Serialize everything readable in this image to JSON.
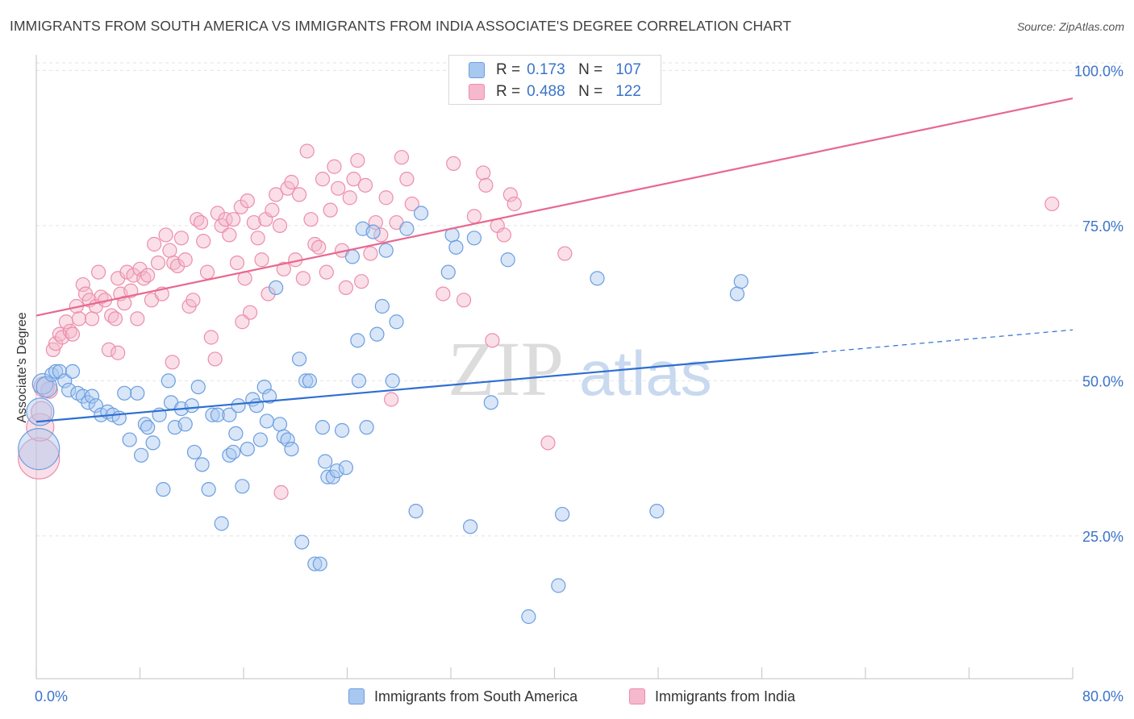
{
  "header": {
    "title": "IMMIGRANTS FROM SOUTH AMERICA VS IMMIGRANTS FROM INDIA ASSOCIATE'S DEGREE CORRELATION CHART",
    "source": "Source: ZipAtlas.com"
  },
  "legend": {
    "r_label": "R =",
    "n_label": "N =",
    "south_america": {
      "r": "0.173",
      "n": "107"
    },
    "india": {
      "r": "0.488",
      "n": "122"
    }
  },
  "bottom_legend": {
    "south_america": "Immigrants from South America",
    "india": "Immigrants from India"
  },
  "watermark": {
    "zip": "ZIP",
    "atlas": "atlas"
  },
  "colors": {
    "blue_fill": "#a8c8f0",
    "blue_stroke": "#6b9ee0",
    "blue_line": "#2e6fd1",
    "pink_fill": "#f5b8cc",
    "pink_stroke": "#ec8eab",
    "pink_line": "#e8688f",
    "tick_text": "#3b74c9",
    "grid": "#e3e3e3"
  },
  "chart_data": {
    "type": "scatter",
    "title": "IMMIGRANTS FROM SOUTH AMERICA VS IMMIGRANTS FROM INDIA ASSOCIATE'S DEGREE CORRELATION CHART",
    "xlabel": "",
    "ylabel": "Associate's Degree",
    "xlim": [
      0,
      80
    ],
    "ylim": [
      2,
      102
    ],
    "x_tick_labels": [
      "0.0%",
      "80.0%"
    ],
    "y_ticks": [
      25,
      50,
      75,
      100
    ],
    "y_tick_labels": [
      "25.0%",
      "50.0%",
      "75.0%",
      "100.0%"
    ],
    "series": [
      {
        "name": "Immigrants from South America",
        "color": "blue",
        "trend": {
          "x0": 0,
          "y0": 43.4,
          "x1": 60,
          "y1": 54.5,
          "dash_to_x": 80,
          "dash_to_y": 58.2
        },
        "points": [
          [
            0.2,
            39,
            3
          ],
          [
            0.3,
            45,
            2
          ],
          [
            0.5,
            49.5,
            1.5
          ],
          [
            0.8,
            49,
            1.5
          ],
          [
            1.2,
            51,
            1
          ],
          [
            1.5,
            51.5,
            1
          ],
          [
            1.8,
            51.5,
            1
          ],
          [
            2.2,
            50,
            1
          ],
          [
            2.5,
            48.5,
            1
          ],
          [
            2.8,
            51.5,
            1
          ],
          [
            3.2,
            48,
            1
          ],
          [
            3.6,
            47.5,
            1
          ],
          [
            4.0,
            46.5,
            1
          ],
          [
            4.3,
            47.5,
            1
          ],
          [
            4.6,
            46,
            1
          ],
          [
            5.0,
            44.5,
            1
          ],
          [
            5.5,
            45,
            1
          ],
          [
            5.9,
            44.5,
            1
          ],
          [
            6.4,
            44,
            1
          ],
          [
            6.8,
            48,
            1
          ],
          [
            7.2,
            40.5,
            1
          ],
          [
            7.8,
            48,
            1
          ],
          [
            8.1,
            38,
            1
          ],
          [
            8.4,
            43,
            1
          ],
          [
            8.6,
            42.5,
            1
          ],
          [
            9.0,
            40,
            1
          ],
          [
            9.5,
            44.5,
            1
          ],
          [
            9.8,
            32.5,
            1
          ],
          [
            10.2,
            50,
            1
          ],
          [
            10.4,
            46.5,
            1
          ],
          [
            10.7,
            42.5,
            1
          ],
          [
            11.2,
            45.5,
            1
          ],
          [
            11.5,
            43,
            1
          ],
          [
            12.0,
            46,
            1
          ],
          [
            12.2,
            38.5,
            1
          ],
          [
            12.5,
            49,
            1
          ],
          [
            12.8,
            36.5,
            1
          ],
          [
            13.3,
            32.5,
            1
          ],
          [
            13.6,
            44.5,
            1
          ],
          [
            14.0,
            44.5,
            1
          ],
          [
            14.3,
            27,
            1
          ],
          [
            14.9,
            44.5,
            1
          ],
          [
            14.9,
            38,
            1
          ],
          [
            15.2,
            38.5,
            1
          ],
          [
            15.4,
            41.5,
            1
          ],
          [
            15.6,
            46,
            1
          ],
          [
            15.9,
            33,
            1
          ],
          [
            16.3,
            39,
            1
          ],
          [
            16.7,
            47,
            1
          ],
          [
            17.0,
            46,
            1
          ],
          [
            17.3,
            40.5,
            1
          ],
          [
            17.6,
            49,
            1
          ],
          [
            17.8,
            43.5,
            1
          ],
          [
            18.0,
            47.5,
            1
          ],
          [
            18.5,
            65,
            1
          ],
          [
            18.8,
            43,
            1
          ],
          [
            19.1,
            41,
            1
          ],
          [
            19.4,
            40.5,
            1
          ],
          [
            19.7,
            39,
            1
          ],
          [
            20.3,
            53.5,
            1
          ],
          [
            20.5,
            24,
            1
          ],
          [
            20.8,
            50,
            1
          ],
          [
            21.1,
            50,
            1
          ],
          [
            21.5,
            20.5,
            1
          ],
          [
            21.9,
            20.5,
            1
          ],
          [
            22.1,
            42.5,
            1
          ],
          [
            22.3,
            37,
            1
          ],
          [
            22.5,
            34.5,
            1
          ],
          [
            22.9,
            34.5,
            1
          ],
          [
            23.2,
            35.5,
            1
          ],
          [
            23.6,
            42,
            1
          ],
          [
            23.9,
            36,
            1
          ],
          [
            24.4,
            70,
            1
          ],
          [
            24.8,
            56.5,
            1
          ],
          [
            24.9,
            50,
            1
          ],
          [
            25.2,
            74.5,
            1
          ],
          [
            25.5,
            42.5,
            1
          ],
          [
            26.0,
            74,
            1
          ],
          [
            26.3,
            57.5,
            1
          ],
          [
            26.7,
            62,
            1
          ],
          [
            27.0,
            71,
            1
          ],
          [
            27.5,
            50,
            1
          ],
          [
            27.8,
            59.5,
            1
          ],
          [
            28.6,
            74.5,
            1
          ],
          [
            29.3,
            29,
            1
          ],
          [
            29.7,
            77,
            1
          ],
          [
            31.8,
            67.5,
            1
          ],
          [
            32.1,
            73.5,
            1
          ],
          [
            32.4,
            71.5,
            1
          ],
          [
            33.5,
            26.5,
            1
          ],
          [
            33.8,
            73,
            1
          ],
          [
            35.1,
            46.5,
            1
          ],
          [
            36.4,
            69.5,
            1
          ],
          [
            38.0,
            12,
            1
          ],
          [
            40.3,
            17,
            1
          ],
          [
            40.6,
            28.5,
            1
          ],
          [
            43.3,
            66.5,
            1
          ],
          [
            47.9,
            29,
            1
          ],
          [
            54.1,
            64,
            1
          ],
          [
            54.4,
            66,
            1
          ]
        ]
      },
      {
        "name": "Immigrants from India",
        "color": "pink",
        "trend": {
          "x0": 0,
          "y0": 60.5,
          "x1": 80,
          "y1": 95.5
        },
        "points": [
          [
            0.2,
            37.5,
            3
          ],
          [
            0.3,
            42.5,
            2
          ],
          [
            0.4,
            45,
            1.5
          ],
          [
            0.6,
            49,
            1.5
          ],
          [
            1.0,
            48.5,
            1.2
          ],
          [
            1.3,
            55,
            1
          ],
          [
            1.5,
            56,
            1
          ],
          [
            1.8,
            57.5,
            1
          ],
          [
            2.0,
            57,
            1
          ],
          [
            2.3,
            59.5,
            1
          ],
          [
            2.6,
            58,
            1
          ],
          [
            2.8,
            57.5,
            1
          ],
          [
            3.1,
            62,
            1
          ],
          [
            3.3,
            60,
            1
          ],
          [
            3.6,
            65.5,
            1
          ],
          [
            3.8,
            64,
            1
          ],
          [
            4.1,
            63,
            1
          ],
          [
            4.3,
            60,
            1
          ],
          [
            4.6,
            62,
            1
          ],
          [
            4.8,
            67.5,
            1
          ],
          [
            5.0,
            63.5,
            1
          ],
          [
            5.3,
            63,
            1
          ],
          [
            5.6,
            55,
            1
          ],
          [
            5.8,
            60.5,
            1
          ],
          [
            6.1,
            60,
            1
          ],
          [
            6.3,
            66.5,
            1
          ],
          [
            6.5,
            64,
            1
          ],
          [
            6.8,
            62.5,
            1
          ],
          [
            7.0,
            67.5,
            1
          ],
          [
            7.3,
            64.5,
            1
          ],
          [
            7.5,
            67,
            1
          ],
          [
            7.8,
            60,
            1
          ],
          [
            8.0,
            68,
            1
          ],
          [
            8.3,
            66.5,
            1
          ],
          [
            8.6,
            67,
            1
          ],
          [
            8.9,
            63,
            1
          ],
          [
            9.1,
            72,
            1
          ],
          [
            9.4,
            69,
            1
          ],
          [
            9.7,
            64,
            1
          ],
          [
            10.0,
            73.5,
            1
          ],
          [
            10.3,
            71,
            1
          ],
          [
            10.6,
            69,
            1
          ],
          [
            10.9,
            68.5,
            1
          ],
          [
            11.2,
            73,
            1
          ],
          [
            11.5,
            69.5,
            1
          ],
          [
            11.8,
            62,
            1
          ],
          [
            12.1,
            63,
            1
          ],
          [
            12.4,
            76,
            1
          ],
          [
            12.7,
            75.5,
            1
          ],
          [
            12.9,
            72.5,
            1
          ],
          [
            13.2,
            67.5,
            1
          ],
          [
            13.5,
            57,
            1
          ],
          [
            13.8,
            53.5,
            1
          ],
          [
            14.0,
            77,
            1
          ],
          [
            14.3,
            75,
            1
          ],
          [
            14.6,
            76,
            1
          ],
          [
            14.9,
            73.5,
            1
          ],
          [
            15.2,
            76,
            1
          ],
          [
            15.5,
            69,
            1
          ],
          [
            15.8,
            78,
            1
          ],
          [
            16.1,
            66.5,
            1
          ],
          [
            16.3,
            79,
            1
          ],
          [
            16.5,
            61,
            1
          ],
          [
            16.8,
            75.5,
            1
          ],
          [
            17.1,
            73,
            1
          ],
          [
            17.4,
            69.5,
            1
          ],
          [
            17.7,
            76,
            1
          ],
          [
            17.9,
            64,
            1
          ],
          [
            18.2,
            77.5,
            1
          ],
          [
            18.5,
            80,
            1
          ],
          [
            18.8,
            75,
            1
          ],
          [
            19.1,
            68,
            1
          ],
          [
            19.4,
            81,
            1
          ],
          [
            19.7,
            82,
            1
          ],
          [
            20.0,
            69.5,
            1
          ],
          [
            20.3,
            80,
            1
          ],
          [
            20.6,
            66.5,
            1
          ],
          [
            20.9,
            87,
            1
          ],
          [
            21.2,
            76,
            1
          ],
          [
            21.5,
            72,
            1
          ],
          [
            21.8,
            71.5,
            1
          ],
          [
            22.1,
            82.5,
            1
          ],
          [
            22.4,
            67.5,
            1
          ],
          [
            22.7,
            77.5,
            1
          ],
          [
            23.0,
            84.5,
            1
          ],
          [
            23.3,
            81,
            1
          ],
          [
            23.6,
            71,
            1
          ],
          [
            23.9,
            65,
            1
          ],
          [
            24.2,
            79.5,
            1
          ],
          [
            24.5,
            82.5,
            1
          ],
          [
            24.8,
            85.5,
            1
          ],
          [
            25.1,
            66,
            1
          ],
          [
            25.4,
            81.5,
            1
          ],
          [
            25.8,
            70.5,
            1
          ],
          [
            26.2,
            75.5,
            1
          ],
          [
            26.6,
            73.5,
            1
          ],
          [
            27.0,
            79.5,
            1
          ],
          [
            27.4,
            47,
            1
          ],
          [
            27.8,
            75.5,
            1
          ],
          [
            28.2,
            86,
            1
          ],
          [
            28.6,
            82.5,
            1
          ],
          [
            29.0,
            78.5,
            1
          ],
          [
            31.4,
            64,
            1
          ],
          [
            32.2,
            85,
            1
          ],
          [
            33.0,
            63,
            1
          ],
          [
            33.8,
            76.5,
            1
          ],
          [
            34.5,
            83.5,
            1
          ],
          [
            34.7,
            81.5,
            1
          ],
          [
            35.2,
            56.5,
            1
          ],
          [
            35.6,
            75,
            1
          ],
          [
            36.1,
            73.5,
            1
          ],
          [
            36.6,
            80,
            1
          ],
          [
            36.9,
            78.5,
            1
          ],
          [
            39.5,
            40,
            1
          ],
          [
            40.8,
            70.5,
            1
          ],
          [
            78.4,
            78.5,
            1
          ],
          [
            6.3,
            54.5,
            1
          ],
          [
            10.5,
            53,
            1
          ],
          [
            15.9,
            59.5,
            1
          ],
          [
            18.9,
            32,
            1
          ]
        ]
      }
    ]
  }
}
